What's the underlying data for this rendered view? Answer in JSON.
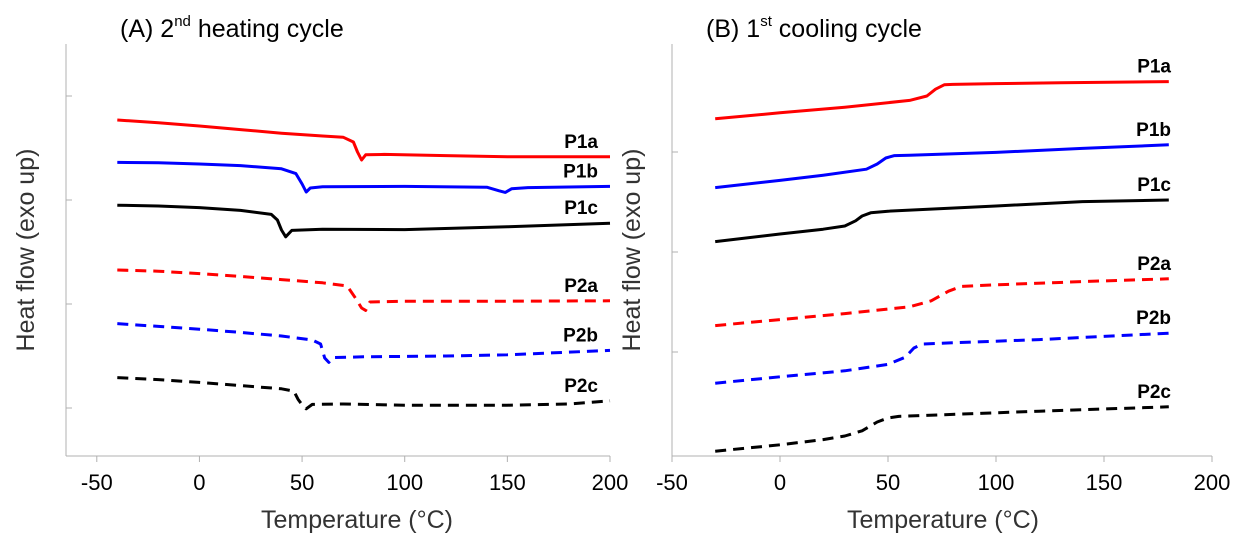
{
  "chart_data": [
    {
      "type": "line",
      "title_prefix": "(A) 2",
      "title_sup": "nd",
      "title_suffix": " heating cycle",
      "xlabel": "Temperature (°C)",
      "ylabel": "Heat flow (exo up)",
      "xlim": [
        -65,
        200
      ],
      "ylim": [
        0,
        100
      ],
      "xticks": [
        -50,
        0,
        50,
        100,
        150,
        200
      ],
      "xtick_labels": [
        "-50",
        "0",
        "50",
        "100",
        "150",
        "200"
      ],
      "yticks": [
        11,
        37,
        63,
        89
      ],
      "grid": false,
      "series": [
        {
          "name": "P1a",
          "color": "#ff0000",
          "dash": "solid",
          "x": [
            -40,
            -20,
            0,
            20,
            40,
            60,
            70,
            75,
            77,
            79,
            81,
            90,
            120,
            150,
            200
          ],
          "y": [
            83,
            82.3,
            81.5,
            80.6,
            79.7,
            79,
            78.7,
            77.5,
            75,
            73,
            74.3,
            74.4,
            74.1,
            73.8,
            73.8
          ]
        },
        {
          "name": "P1b",
          "color": "#0000ff",
          "dash": "solid",
          "x": [
            -40,
            -20,
            0,
            20,
            40,
            47,
            50,
            52,
            54,
            60,
            100,
            140,
            146,
            149,
            152,
            160,
            200
          ],
          "y": [
            72.4,
            72.3,
            72,
            71.6,
            70.8,
            69.6,
            67,
            65,
            66,
            66.3,
            66.4,
            66.2,
            65.3,
            64.9,
            65.8,
            66.1,
            66.4
          ]
        },
        {
          "name": "P1c",
          "color": "#000000",
          "dash": "solid",
          "x": [
            -40,
            -20,
            0,
            20,
            35,
            38,
            40,
            42,
            45,
            60,
            100,
            150,
            200
          ],
          "y": [
            61.7,
            61.5,
            61.1,
            60.4,
            59.4,
            58,
            55.5,
            53.8,
            55.4,
            55.7,
            55.6,
            56.3,
            57.2
          ]
        },
        {
          "name": "P2a",
          "color": "#ff0000",
          "dash": "dashed",
          "x": [
            -40,
            -20,
            0,
            20,
            40,
            60,
            72,
            76,
            79,
            81,
            83,
            100,
            150,
            200
          ],
          "y": [
            45.5,
            45.2,
            44.6,
            43.9,
            43.1,
            42.3,
            41.5,
            38.5,
            36,
            35.4,
            37.5,
            37.7,
            37.7,
            37.8
          ]
        },
        {
          "name": "P2b",
          "color": "#0000ff",
          "dash": "dashed",
          "x": [
            -40,
            -20,
            0,
            20,
            40,
            55,
            59,
            61,
            63,
            65,
            80,
            120,
            150,
            200
          ],
          "y": [
            32.1,
            31.4,
            30.7,
            29.9,
            29,
            28,
            27,
            23.5,
            22.4,
            23.6,
            23.8,
            24,
            24.3,
            25.4
          ]
        },
        {
          "name": "P2c",
          "color": "#000000",
          "dash": "dashed",
          "x": [
            -40,
            -20,
            0,
            20,
            40,
            46,
            48,
            50,
            52,
            55,
            70,
            100,
            150,
            180,
            200
          ],
          "y": [
            18.6,
            18.1,
            17.4,
            16.6,
            15.8,
            15.2,
            13.2,
            11.8,
            10.8,
            11.9,
            12,
            11.7,
            11.7,
            12,
            12.8
          ]
        }
      ]
    },
    {
      "type": "line",
      "title_prefix": "(B) 1",
      "title_sup": "st",
      "title_suffix": " cooling cycle",
      "xlabel": "Temperature (°C)",
      "ylabel": "Heat flow (exo up)",
      "xlim": [
        -50,
        200
      ],
      "ylim": [
        0,
        100
      ],
      "xticks": [
        -50,
        0,
        50,
        100,
        150,
        200
      ],
      "xtick_labels": [
        "-50",
        "0",
        "50",
        "100",
        "150",
        "200"
      ],
      "yticks": [
        25,
        50,
        75
      ],
      "grid": false,
      "series": [
        {
          "name": "P1a",
          "color": "#ff0000",
          "dash": "solid",
          "x": [
            -30,
            0,
            30,
            60,
            68,
            72,
            76,
            80,
            100,
            130,
            180
          ],
          "y": [
            83.3,
            84.8,
            86.2,
            87.9,
            89,
            90.7,
            91.8,
            91.9,
            92.1,
            92.3,
            92.6
          ]
        },
        {
          "name": "P1b",
          "color": "#0000ff",
          "dash": "solid",
          "x": [
            -30,
            0,
            20,
            40,
            45,
            49,
            53,
            60,
            100,
            140,
            180
          ],
          "y": [
            66.1,
            67.9,
            69.2,
            70.7,
            72,
            73.5,
            74.1,
            74.2,
            74.9,
            75.9,
            76.8
          ]
        },
        {
          "name": "P1c",
          "color": "#000000",
          "dash": "solid",
          "x": [
            -30,
            0,
            20,
            30,
            35,
            38,
            42,
            50,
            100,
            140,
            180
          ],
          "y": [
            52.6,
            54.5,
            55.7,
            56.5,
            57.8,
            59,
            59.8,
            60.2,
            61.5,
            62.6,
            63
          ]
        },
        {
          "name": "P2a",
          "color": "#ff0000",
          "dash": "dashed",
          "x": [
            -30,
            0,
            30,
            60,
            70,
            78,
            84,
            100,
            140,
            180
          ],
          "y": [
            31.6,
            33.1,
            34.6,
            36.3,
            37.8,
            40.2,
            41.4,
            41.8,
            42.6,
            43.3
          ]
        },
        {
          "name": "P2b",
          "color": "#0000ff",
          "dash": "dashed",
          "x": [
            -30,
            0,
            30,
            50,
            58,
            62,
            66,
            80,
            120,
            180
          ],
          "y": [
            17.2,
            18.8,
            20.3,
            21.9,
            23.7,
            26,
            27,
            27.3,
            28.1,
            29.7
          ]
        },
        {
          "name": "P2c",
          "color": "#000000",
          "dash": "dashed",
          "x": [
            -30,
            0,
            20,
            30,
            38,
            45,
            50,
            55,
            80,
            120,
            180
          ],
          "y": [
            0.2,
            1.8,
            3.1,
            4,
            5.3,
            7.5,
            8.5,
            8.9,
            9.4,
            10.2,
            11.3
          ]
        }
      ]
    }
  ]
}
